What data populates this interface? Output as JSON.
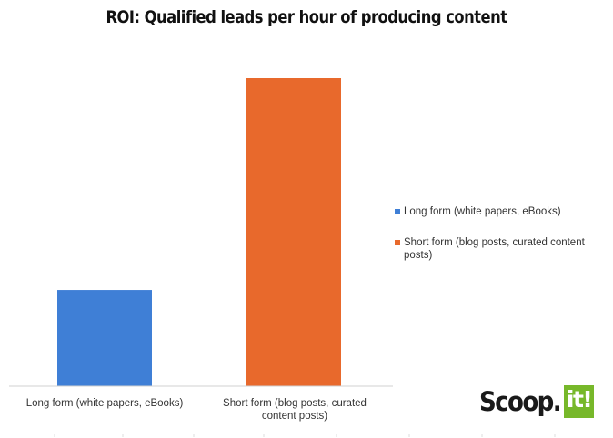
{
  "chart_data": {
    "type": "bar",
    "title": "ROI: Qualified leads per hour of producing content",
    "categories": [
      "Long form (white papers, eBooks)",
      "Short form (blog posts, curated content posts)"
    ],
    "series": [
      {
        "name": "Long form (white papers, eBooks)",
        "values": [
          1,
          null
        ],
        "color": "#3f7fd6"
      },
      {
        "name": "Short form (blog posts, curated content posts)",
        "values": [
          null,
          3.2
        ],
        "color": "#e8692c"
      }
    ],
    "values": [
      1,
      3.2
    ],
    "colors": [
      "#3f7fd6",
      "#e8692c"
    ],
    "ylim": [
      0,
      3.2
    ],
    "xlabel": "",
    "ylabel": "",
    "grid": false,
    "legend": "right",
    "legend_entries": [
      "Long form (white papers, eBooks)",
      "Short form (blog posts, curated content posts)"
    ]
  },
  "category_labels": {
    "long": "Long form (white papers, eBooks)",
    "short_line1": "Short form (blog posts, curated",
    "short_line2": "content posts)"
  },
  "logo": {
    "text": "Scoop.",
    "badge": "it!",
    "badge_color": "#77b82a"
  }
}
